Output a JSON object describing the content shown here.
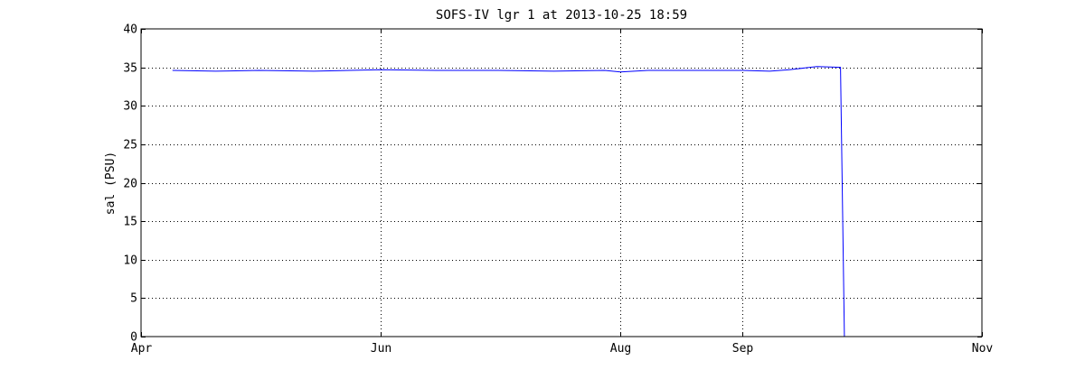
{
  "chart_data": {
    "type": "line",
    "title": "SOFS-IV lgr 1 at 2013-10-25 18:59",
    "xlabel": "",
    "ylabel": "sal (PSU)",
    "ylim": [
      0,
      40
    ],
    "yticks": [
      0,
      5,
      10,
      15,
      20,
      25,
      30,
      35,
      40
    ],
    "xlim": [
      "2013-04-01",
      "2013-11-01"
    ],
    "xticks": [
      {
        "value": "2013-04-01",
        "label": "Apr"
      },
      {
        "value": "2013-06-01",
        "label": "Jun"
      },
      {
        "value": "2013-08-01",
        "label": "Aug"
      },
      {
        "value": "2013-09-01",
        "label": "Sep"
      },
      {
        "value": "2013-11-01",
        "label": "Nov"
      }
    ],
    "grid": true,
    "series": [
      {
        "color": "#0000ff",
        "x": [
          "2013-04-09",
          "2013-04-20",
          "2013-05-01",
          "2013-05-15",
          "2013-06-01",
          "2013-06-15",
          "2013-07-01",
          "2013-07-15",
          "2013-07-28",
          "2013-08-01",
          "2013-08-08",
          "2013-08-20",
          "2013-09-01",
          "2013-09-08",
          "2013-09-13",
          "2013-09-20",
          "2013-09-26",
          "2013-09-27",
          "2013-10-15",
          "2013-10-31"
        ],
        "y": [
          34.6,
          34.5,
          34.6,
          34.5,
          34.7,
          34.6,
          34.6,
          34.5,
          34.6,
          34.4,
          34.6,
          34.6,
          34.6,
          34.5,
          34.7,
          35.1,
          35.0,
          0,
          0,
          0
        ]
      }
    ]
  }
}
